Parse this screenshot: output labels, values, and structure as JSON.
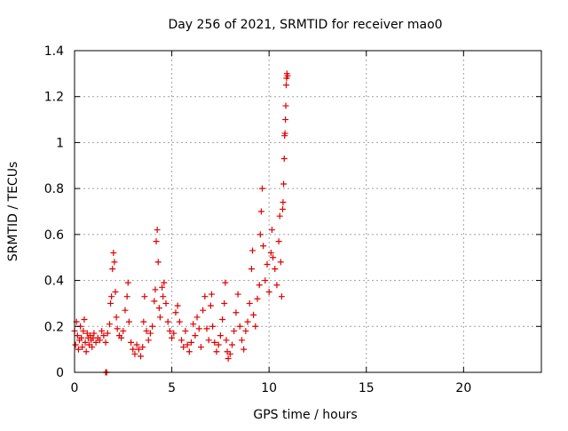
{
  "chart_data": {
    "type": "scatter",
    "title": "Day 256 of 2021, SRMTID for receiver mao0",
    "xlabel": "GPS time / hours",
    "ylabel": "SRMTID / TECUs",
    "xlim": [
      0,
      24
    ],
    "ylim": [
      0,
      1.4
    ],
    "x_ticks": [
      0,
      5,
      10,
      15,
      20
    ],
    "y_ticks": [
      0,
      0.2,
      0.4,
      0.6,
      0.8,
      1,
      1.2,
      1.4
    ],
    "x_tick_labels": [
      "0",
      "5",
      "10",
      "15",
      "20"
    ],
    "y_tick_labels": [
      "0",
      "0.2",
      "0.4",
      "0.6",
      "0.8",
      "1",
      "1.2",
      "1.4"
    ],
    "grid": true,
    "marker": "plus",
    "color": "#e00000",
    "series": [
      {
        "name": "SRMTID",
        "points": [
          [
            0.0,
            0.18
          ],
          [
            0.05,
            0.12
          ],
          [
            0.1,
            0.22
          ],
          [
            0.15,
            0.16
          ],
          [
            0.2,
            0.1
          ],
          [
            0.25,
            0.14
          ],
          [
            0.3,
            0.2
          ],
          [
            0.35,
            0.15
          ],
          [
            0.4,
            0.11
          ],
          [
            0.45,
            0.18
          ],
          [
            0.5,
            0.23
          ],
          [
            0.55,
            0.13
          ],
          [
            0.6,
            0.09
          ],
          [
            0.65,
            0.17
          ],
          [
            0.7,
            0.15
          ],
          [
            0.75,
            0.12
          ],
          [
            0.8,
            0.16
          ],
          [
            0.85,
            0.14
          ],
          [
            0.9,
            0.11
          ],
          [
            0.95,
            0.15
          ],
          [
            1.0,
            0.17
          ],
          [
            1.1,
            0.13
          ],
          [
            1.2,
            0.15
          ],
          [
            1.3,
            0.14
          ],
          [
            1.4,
            0.18
          ],
          [
            1.5,
            0.16
          ],
          [
            1.6,
            0.13
          ],
          [
            1.7,
            0.17
          ],
          [
            1.8,
            0.21
          ],
          [
            1.85,
            0.3
          ],
          [
            1.9,
            0.33
          ],
          [
            1.95,
            0.45
          ],
          [
            2.0,
            0.52
          ],
          [
            2.05,
            0.48
          ],
          [
            2.1,
            0.35
          ],
          [
            2.15,
            0.24
          ],
          [
            2.2,
            0.19
          ],
          [
            2.3,
            0.16
          ],
          [
            2.4,
            0.15
          ],
          [
            2.5,
            0.18
          ],
          [
            2.6,
            0.27
          ],
          [
            2.7,
            0.33
          ],
          [
            2.75,
            0.39
          ],
          [
            2.8,
            0.22
          ],
          [
            2.9,
            0.13
          ],
          [
            3.0,
            0.1
          ],
          [
            3.1,
            0.08
          ],
          [
            3.2,
            0.12
          ],
          [
            3.3,
            0.1
          ],
          [
            3.4,
            0.07
          ],
          [
            3.5,
            0.11
          ],
          [
            3.55,
            0.22
          ],
          [
            3.6,
            0.33
          ],
          [
            3.7,
            0.18
          ],
          [
            3.8,
            0.14
          ],
          [
            3.9,
            0.17
          ],
          [
            4.0,
            0.2
          ],
          [
            4.1,
            0.31
          ],
          [
            4.15,
            0.36
          ],
          [
            4.2,
            0.57
          ],
          [
            4.25,
            0.62
          ],
          [
            4.3,
            0.48
          ],
          [
            4.35,
            0.28
          ],
          [
            4.4,
            0.24
          ],
          [
            4.5,
            0.37
          ],
          [
            4.55,
            0.33
          ],
          [
            4.6,
            0.39
          ],
          [
            4.7,
            0.3
          ],
          [
            4.8,
            0.22
          ],
          [
            4.9,
            0.18
          ],
          [
            5.0,
            0.15
          ],
          [
            5.1,
            0.17
          ],
          [
            5.2,
            0.26
          ],
          [
            5.3,
            0.29
          ],
          [
            5.4,
            0.22
          ],
          [
            5.5,
            0.14
          ],
          [
            5.6,
            0.11
          ],
          [
            5.7,
            0.18
          ],
          [
            5.8,
            0.12
          ],
          [
            5.9,
            0.09
          ],
          [
            6.0,
            0.13
          ],
          [
            6.1,
            0.21
          ],
          [
            6.2,
            0.16
          ],
          [
            6.3,
            0.24
          ],
          [
            6.4,
            0.19
          ],
          [
            6.5,
            0.11
          ],
          [
            6.6,
            0.27
          ],
          [
            6.7,
            0.33
          ],
          [
            6.8,
            0.19
          ],
          [
            6.9,
            0.14
          ],
          [
            7.0,
            0.29
          ],
          [
            7.05,
            0.34
          ],
          [
            7.1,
            0.2
          ],
          [
            7.2,
            0.13
          ],
          [
            7.3,
            0.09
          ],
          [
            7.4,
            0.12
          ],
          [
            7.5,
            0.16
          ],
          [
            7.6,
            0.23
          ],
          [
            7.7,
            0.3
          ],
          [
            7.75,
            0.39
          ],
          [
            7.8,
            0.14
          ],
          [
            7.85,
            0.09
          ],
          [
            7.9,
            0.06
          ],
          [
            8.0,
            0.08
          ],
          [
            8.1,
            0.12
          ],
          [
            8.2,
            0.18
          ],
          [
            8.3,
            0.26
          ],
          [
            8.4,
            0.34
          ],
          [
            8.5,
            0.2
          ],
          [
            8.6,
            0.14
          ],
          [
            8.7,
            0.1
          ],
          [
            8.8,
            0.18
          ],
          [
            8.9,
            0.22
          ],
          [
            9.0,
            0.3
          ],
          [
            9.1,
            0.45
          ],
          [
            9.15,
            0.53
          ],
          [
            9.2,
            0.25
          ],
          [
            9.3,
            0.2
          ],
          [
            9.4,
            0.32
          ],
          [
            9.5,
            0.38
          ],
          [
            9.55,
            0.6
          ],
          [
            9.6,
            0.7
          ],
          [
            9.65,
            0.8
          ],
          [
            9.7,
            0.55
          ],
          [
            9.8,
            0.4
          ],
          [
            9.9,
            0.47
          ],
          [
            10.0,
            0.35
          ],
          [
            10.1,
            0.52
          ],
          [
            10.15,
            0.62
          ],
          [
            10.2,
            0.5
          ],
          [
            10.3,
            0.45
          ],
          [
            10.4,
            0.38
          ],
          [
            10.5,
            0.57
          ],
          [
            10.55,
            0.68
          ],
          [
            10.6,
            0.48
          ],
          [
            10.65,
            0.33
          ],
          [
            10.7,
            0.71
          ],
          [
            10.72,
            0.74
          ],
          [
            10.75,
            0.82
          ],
          [
            10.78,
            0.93
          ],
          [
            10.8,
            1.03
          ],
          [
            10.82,
            1.04
          ],
          [
            10.84,
            1.1
          ],
          [
            10.86,
            1.16
          ],
          [
            10.88,
            1.25
          ],
          [
            10.9,
            1.28
          ],
          [
            10.92,
            1.3
          ],
          [
            10.95,
            1.29
          ],
          [
            1.6,
            0.0
          ],
          [
            1.65,
            0.0
          ]
        ]
      }
    ]
  }
}
